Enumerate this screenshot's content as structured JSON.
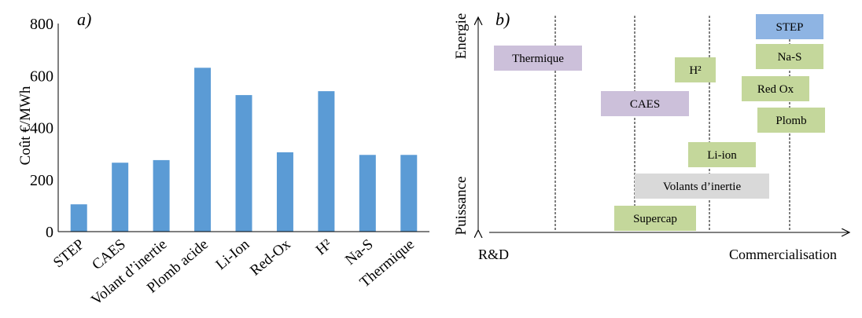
{
  "chart_data": [
    {
      "type": "bar",
      "panel_label": "a)",
      "ylabel": "Coût €/MWh",
      "ylim": [
        0,
        800
      ],
      "yticks": [
        0,
        200,
        400,
        600,
        800
      ],
      "grid": false,
      "bar_color": "#5b9bd5",
      "categories": [
        "STEP",
        "CAES",
        "Volant d’inertie",
        "Plomb acide",
        "Li-Ion",
        "Red-Ox",
        "H²",
        "Na-S",
        "Thermique"
      ],
      "values": [
        105,
        265,
        275,
        630,
        525,
        305,
        540,
        295,
        295
      ]
    },
    {
      "type": "diagram",
      "panel_label": "b)",
      "x_axis": {
        "start_label": "R&D",
        "end_label": "Commercialisation"
      },
      "y_axis": {
        "top_label": "Energie",
        "bottom_label": "Puissance"
      },
      "colors": {
        "green": "#c4d79b",
        "purple": "#ccc0da",
        "blue": "#8eb4e3",
        "gray": "#d9d9d9"
      },
      "technologies": [
        {
          "label": "STEP",
          "color": "blue"
        },
        {
          "label": "Thermique",
          "color": "purple"
        },
        {
          "label": "Na-S",
          "color": "green"
        },
        {
          "label": "H²",
          "color": "green"
        },
        {
          "label": "Red Ox",
          "color": "green"
        },
        {
          "label": "CAES",
          "color": "purple"
        },
        {
          "label": "Plomb",
          "color": "green"
        },
        {
          "label": "Li-ion",
          "color": "green"
        },
        {
          "label": "Volants d’inertie",
          "color": "gray"
        },
        {
          "label": "Supercap",
          "color": "green"
        }
      ]
    }
  ]
}
